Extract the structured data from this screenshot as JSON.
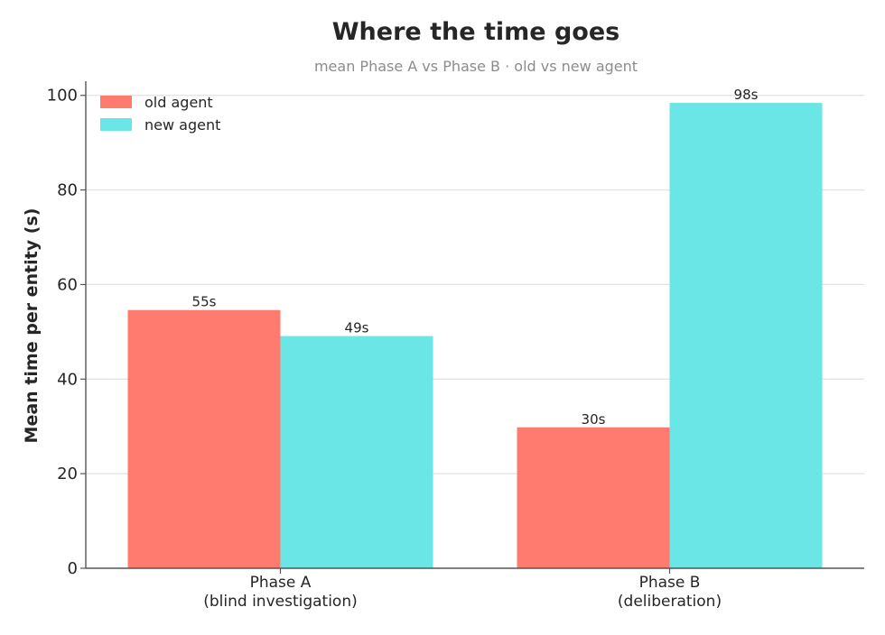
{
  "chart_data": {
    "type": "bar",
    "title": "Where the time goes",
    "subtitle": "mean Phase A vs Phase B · old vs new agent",
    "xlabel": "",
    "ylabel": "Mean time per entity (s)",
    "categories": [
      [
        "Phase A",
        "(blind investigation)"
      ],
      [
        "Phase B",
        "(deliberation)"
      ]
    ],
    "series": [
      {
        "name": "old agent",
        "color": "#ff7b6f",
        "values": [
          54.6,
          29.8
        ],
        "labels": [
          "55s",
          "30s"
        ]
      },
      {
        "name": "new agent",
        "color": "#6ae6e6",
        "values": [
          49.1,
          98.4
        ],
        "labels": [
          "49s",
          "98s"
        ]
      }
    ],
    "ylim": [
      0,
      103
    ],
    "yticks": [
      0,
      20,
      40,
      60,
      80,
      100
    ],
    "grid": true,
    "legend_position": "top-left"
  }
}
